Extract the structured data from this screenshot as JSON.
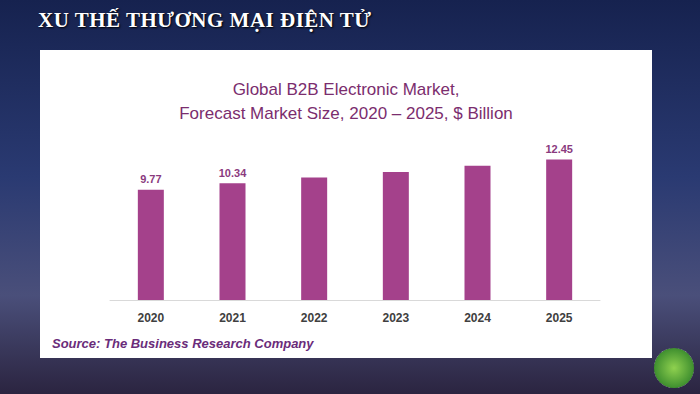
{
  "slide_title": "XU THẾ THƯƠNG MẠI ĐIỆN TỬ",
  "chart_data": {
    "type": "bar",
    "title": "Global B2B Electronic Market,\nForecast Market Size, 2020 – 2025, $ Billion",
    "categories": [
      "2020",
      "2021",
      "2022",
      "2023",
      "2024",
      "2025"
    ],
    "values": [
      9.77,
      10.34,
      10.85,
      11.35,
      11.9,
      12.45
    ],
    "value_labels": [
      "9.77",
      "10.34",
      null,
      null,
      null,
      "12.45"
    ],
    "data_labels": true,
    "color": "#a4418b",
    "ylim": [
      0,
      14
    ],
    "grid": false,
    "tick_labels": "x",
    "annotations": [
      "Source: The Business Research Company"
    ]
  }
}
